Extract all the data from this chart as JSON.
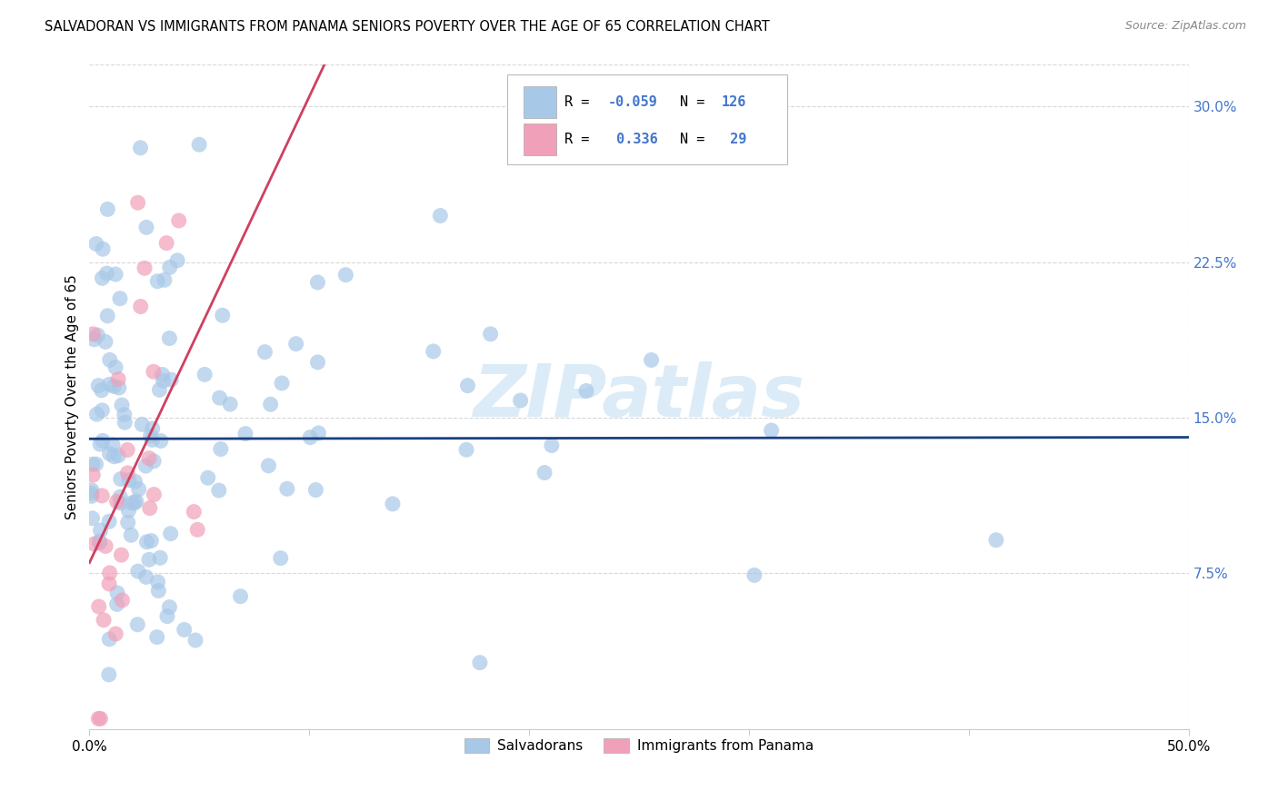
{
  "title": "SALVADORAN VS IMMIGRANTS FROM PANAMA SENIORS POVERTY OVER THE AGE OF 65 CORRELATION CHART",
  "source": "Source: ZipAtlas.com",
  "ylabel": "Seniors Poverty Over the Age of 65",
  "xlim": [
    0.0,
    0.5
  ],
  "ylim": [
    0.0,
    0.32
  ],
  "yticks_right": [
    0.075,
    0.15,
    0.225,
    0.3
  ],
  "yticklabels_right": [
    "7.5%",
    "15.0%",
    "22.5%",
    "30.0%"
  ],
  "R_blue": -0.059,
  "N_blue": 126,
  "R_pink": 0.336,
  "N_pink": 29,
  "blue_color": "#a8c8e8",
  "pink_color": "#f0a0b8",
  "trend_blue_color": "#1a4080",
  "trend_pink_color": "#d04060",
  "trend_gray_color": "#c0c0c0",
  "watermark": "ZIPatlas",
  "watermark_color": "#d8eaf8",
  "grid_color": "#d8d8d8",
  "right_tick_color": "#4477cc",
  "seed": 12345
}
